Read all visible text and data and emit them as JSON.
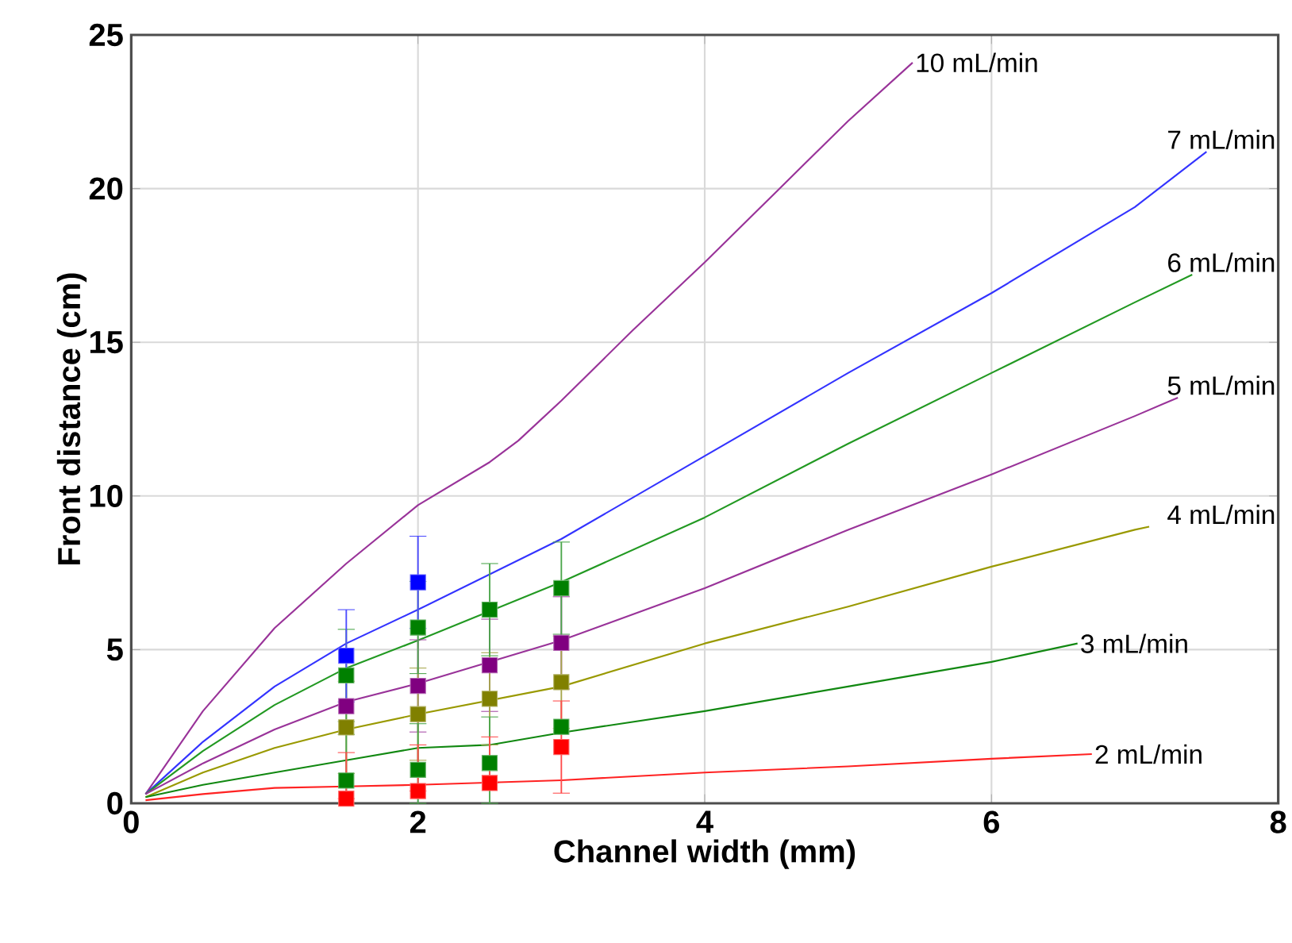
{
  "chart_data": {
    "type": "line",
    "xlabel": "Channel width  (mm)",
    "ylabel": "Front distance (cm)",
    "xlim": [
      0,
      8
    ],
    "ylim": [
      0,
      25
    ],
    "xticks": [
      0,
      2,
      4,
      6,
      8
    ],
    "yticks": [
      0,
      5,
      10,
      15,
      20,
      25
    ],
    "grid": true,
    "marker": "none",
    "line_style": "solid",
    "series": [
      {
        "name": "10 mL/min",
        "color": "#993399",
        "x": [
          0.1,
          0.5,
          1,
          1.5,
          2,
          2.5,
          2.7,
          3,
          3.5,
          4,
          4.5,
          5,
          5.45
        ],
        "values": [
          0.3,
          3.0,
          5.7,
          7.8,
          9.7,
          11.1,
          11.8,
          13.1,
          15.4,
          17.6,
          19.9,
          22.2,
          24.1
        ]
      },
      {
        "name": "7 mL/min",
        "color": "#3333ff",
        "x": [
          0.1,
          0.5,
          1,
          1.5,
          2,
          3,
          4,
          5,
          6,
          7,
          7.5
        ],
        "values": [
          0.3,
          2.0,
          3.8,
          5.2,
          6.3,
          8.6,
          11.3,
          14.0,
          16.6,
          19.4,
          21.2
        ]
      },
      {
        "name": "6 mL/min",
        "color": "#229922",
        "x": [
          0.1,
          0.5,
          1,
          1.5,
          2,
          3,
          4,
          5,
          6,
          7,
          7.4
        ],
        "values": [
          0.3,
          1.7,
          3.2,
          4.4,
          5.3,
          7.2,
          9.3,
          11.7,
          14.0,
          16.3,
          17.2
        ]
      },
      {
        "name": "5 mL/min",
        "color": "#993399",
        "x": [
          0.1,
          0.5,
          1,
          1.5,
          2,
          3,
          4,
          5,
          6,
          7,
          7.3
        ],
        "values": [
          0.3,
          1.3,
          2.4,
          3.3,
          3.9,
          5.3,
          7.0,
          8.9,
          10.7,
          12.6,
          13.2
        ]
      },
      {
        "name": "4 mL/min",
        "color": "#999900",
        "x": [
          0.1,
          0.5,
          1,
          1.5,
          2,
          3,
          4,
          5,
          6,
          7,
          7.1
        ],
        "values": [
          0.2,
          1.0,
          1.8,
          2.4,
          2.9,
          3.8,
          5.2,
          6.4,
          7.7,
          8.9,
          9.0
        ]
      },
      {
        "name": "3 mL/min",
        "color": "#118811",
        "x": [
          0.1,
          0.5,
          1,
          1.5,
          2,
          2.5,
          3,
          4,
          5,
          6,
          6.6
        ],
        "values": [
          0.2,
          0.6,
          1.0,
          1.4,
          1.8,
          1.9,
          2.3,
          3.0,
          3.8,
          4.6,
          5.2
        ]
      },
      {
        "name": "2 mL/min",
        "color": "#ff2222",
        "x": [
          0.1,
          0.5,
          1,
          1.5,
          2,
          3,
          4,
          5,
          6,
          6.7
        ],
        "values": [
          0.1,
          0.3,
          0.5,
          0.55,
          0.6,
          0.75,
          1.0,
          1.2,
          1.45,
          1.6
        ]
      },
      {
        "type": "scatter",
        "marker": "square",
        "color": "#800080",
        "x": [
          1.5,
          2,
          2.5,
          3
        ],
        "values": [
          3.16,
          3.82,
          4.49,
          5.22
        ],
        "errors": [
          null,
          1.5,
          1.5,
          1.5
        ]
      },
      {
        "type": "scatter",
        "marker": "square",
        "color": "#808000",
        "x": [
          1.5,
          2,
          2.5,
          3
        ],
        "values": [
          2.47,
          2.9,
          3.4,
          3.94
        ],
        "errors": [
          1.5,
          1.5,
          1.5,
          1.5
        ]
      },
      {
        "type": "scatter",
        "marker": "square",
        "color": "#008000",
        "x": [
          1.5,
          2,
          2.5,
          3
        ],
        "values": [
          0.74,
          1.09,
          1.31,
          2.49
        ],
        "errors": [
          [
            0,
            2.24
          ],
          [
            0,
            2.59
          ],
          [
            0,
            2.81
          ],
          null
        ]
      },
      {
        "type": "scatter",
        "marker": "square",
        "color": "#ff0000",
        "x": [
          1.5,
          2,
          2.5,
          3
        ],
        "values": [
          0.15,
          0.4,
          0.66,
          1.83
        ],
        "errors": [
          [
            0.15,
            1.65
          ],
          [
            0.4,
            1.9
          ],
          [
            0.66,
            2.16
          ],
          [
            0.33,
            3.33
          ]
        ]
      },
      {
        "type": "scatter",
        "marker": "square",
        "color": "#008000",
        "x": [
          1.5,
          2,
          2.5,
          3
        ],
        "values": [
          4.16,
          5.72,
          6.3,
          7.0
        ],
        "errors": [
          1.5,
          1.5,
          1.5,
          1.5
        ]
      },
      {
        "type": "scatter",
        "marker": "square",
        "color": "#0000ff",
        "x": [
          1.5,
          2
        ],
        "values": [
          4.8,
          7.19
        ],
        "errors": [
          1.5,
          1.5
        ]
      }
    ]
  }
}
